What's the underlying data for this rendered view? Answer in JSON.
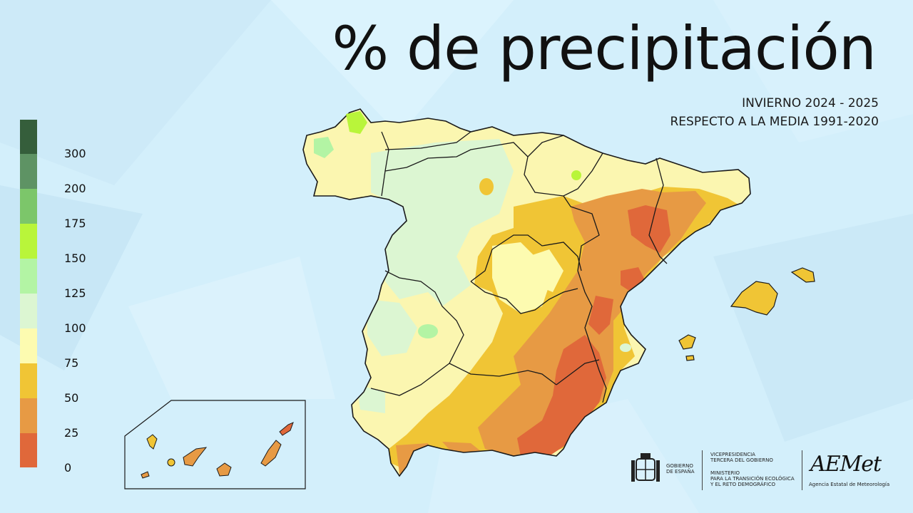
{
  "title": "% de precipitación",
  "subtitle_line1": "INVIERNO 2024 - 2025",
  "subtitle_line2": "RESPECTO A LA MEDIA 1991-2020",
  "legend": {
    "bands": [
      {
        "from": 300,
        "color": "#355e3b"
      },
      {
        "from": 200,
        "color": "#5e9364"
      },
      {
        "from": 175,
        "color": "#7cc66a"
      },
      {
        "from": 150,
        "color": "#b9f53a"
      },
      {
        "from": 125,
        "color": "#b3f4a4"
      },
      {
        "from": 100,
        "color": "#dcf6d2"
      },
      {
        "from": 75,
        "color": "#fdfbb0"
      },
      {
        "from": 50,
        "color": "#f0c535"
      },
      {
        "from": 25,
        "color": "#e79a44"
      },
      {
        "from": 0,
        "color": "#e0683a"
      }
    ],
    "labels": [
      "300",
      "200",
      "175",
      "150",
      "125",
      "100",
      "75",
      "50",
      "25",
      "0"
    ]
  },
  "logos": {
    "gobierno": "GOBIERNO\nDE ESPAÑA",
    "vicepresidencia": "VICEPRESIDENCIA\nTERCERA DEL GOBIERNO",
    "ministerio": "MINISTERIO\nPARA LA TRANSICIÓN ECOLÓGICA\nY EL RETO DEMOGRÁFICO",
    "aemet": "AEMet",
    "aemet_full": "Agencia Estatal de Meteorología"
  }
}
